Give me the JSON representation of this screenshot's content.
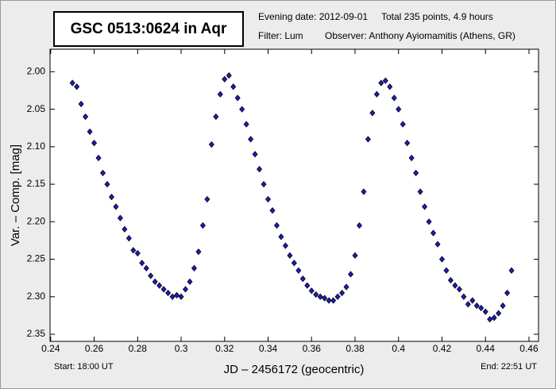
{
  "chart_data": {
    "type": "scatter",
    "title": "GSC 0513:0624 in Aqr",
    "info": [
      "Evening date: 2012-09-01",
      "Total 235 points, 4.9 hours",
      "Filter: Lum",
      "Observer: Anthony Ayiomamitis (Athens, GR)"
    ],
    "x_label": "JD – 2456172  (geocentric)",
    "y_label": "Var. – Comp. [mag]",
    "start_label": "Start: 18:00 UT",
    "end_label": "End: 22:51 UT",
    "xlim": [
      0.2397,
      0.4644
    ],
    "ylim": [
      2.3595,
      1.97
    ],
    "xticks": [
      0.24,
      0.26,
      0.28,
      0.3,
      0.32,
      0.34,
      0.36,
      0.38,
      0.4,
      0.42,
      0.44,
      0.46
    ],
    "yticks": [
      {
        "value": 2.0,
        "label": "2.00"
      },
      {
        "value": 2.05,
        "label": "2.05"
      },
      {
        "value": 2.1,
        "label": "2.10"
      },
      {
        "value": 2.15,
        "label": "2.15"
      },
      {
        "value": 2.2,
        "label": "2.20"
      },
      {
        "value": 2.25,
        "label": "2.25"
      },
      {
        "value": 2.3,
        "label": "2.30"
      },
      {
        "value": 2.35,
        "label": "2.35"
      }
    ],
    "series": [
      {
        "color": "#1c1cc8",
        "x": [
          0.25,
          0.252,
          0.254,
          0.256,
          0.258,
          0.26,
          0.262,
          0.264,
          0.266,
          0.268,
          0.27,
          0.272,
          0.274,
          0.276,
          0.278,
          0.28,
          0.282,
          0.284,
          0.286,
          0.288,
          0.29,
          0.292,
          0.294,
          0.296,
          0.298,
          0.3,
          0.302,
          0.304,
          0.306,
          0.308,
          0.31,
          0.312,
          0.314,
          0.316,
          0.318,
          0.32,
          0.322,
          0.324,
          0.326,
          0.328,
          0.33,
          0.332,
          0.334,
          0.336,
          0.338,
          0.34,
          0.342,
          0.344,
          0.346,
          0.348,
          0.35,
          0.352,
          0.354,
          0.356,
          0.358,
          0.36,
          0.362,
          0.364,
          0.366,
          0.368,
          0.37,
          0.372,
          0.374,
          0.376,
          0.378,
          0.38,
          0.382,
          0.384,
          0.386,
          0.388,
          0.39,
          0.392,
          0.394,
          0.396,
          0.398,
          0.4,
          0.402,
          0.404,
          0.406,
          0.408,
          0.41,
          0.412,
          0.414,
          0.416,
          0.418,
          0.42,
          0.422,
          0.424,
          0.426,
          0.428,
          0.43,
          0.432,
          0.434,
          0.436,
          0.438,
          0.44,
          0.442,
          0.444,
          0.446,
          0.448,
          0.45,
          0.452
        ],
        "values": [
          2.015,
          2.02,
          2.043,
          2.06,
          2.08,
          2.095,
          2.115,
          2.135,
          2.15,
          2.167,
          2.18,
          2.195,
          2.21,
          2.222,
          2.238,
          2.242,
          2.255,
          2.262,
          2.272,
          2.28,
          2.285,
          2.29,
          2.295,
          2.3,
          2.298,
          2.3,
          2.29,
          2.28,
          2.262,
          2.24,
          2.205,
          2.17,
          2.097,
          2.06,
          2.03,
          2.01,
          2.005,
          2.02,
          2.035,
          2.05,
          2.07,
          2.09,
          2.11,
          2.13,
          2.15,
          2.17,
          2.185,
          2.205,
          2.22,
          2.232,
          2.245,
          2.255,
          2.265,
          2.276,
          2.285,
          2.292,
          2.297,
          2.3,
          2.302,
          2.305,
          2.305,
          2.3,
          2.295,
          2.287,
          2.27,
          2.245,
          2.205,
          2.16,
          2.09,
          2.055,
          2.03,
          2.015,
          2.012,
          2.02,
          2.035,
          2.05,
          2.07,
          2.095,
          2.115,
          2.135,
          2.16,
          2.18,
          2.2,
          2.215,
          2.23,
          2.25,
          2.265,
          2.278,
          2.285,
          2.29,
          2.3,
          2.31,
          2.305,
          2.312,
          2.315,
          2.32,
          2.33,
          2.328,
          2.322,
          2.312,
          2.295,
          2.265
        ]
      }
    ]
  }
}
